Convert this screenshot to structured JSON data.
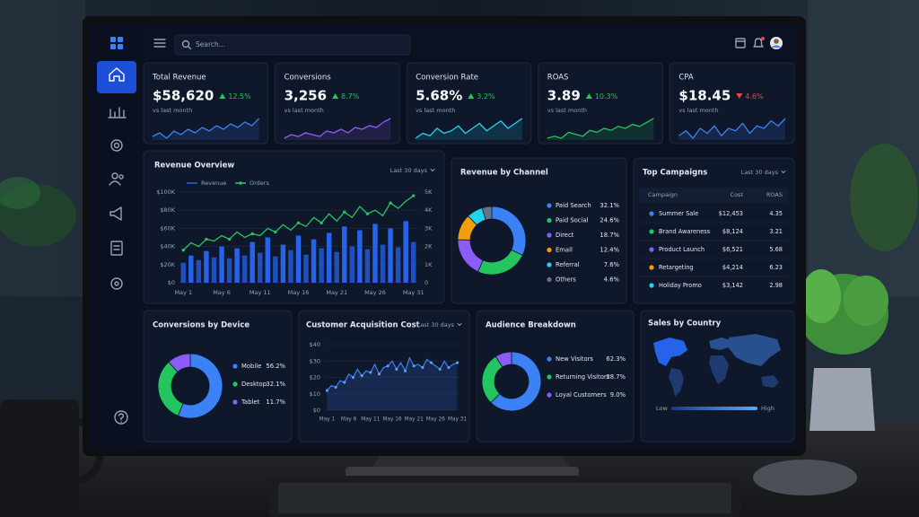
{
  "header": {
    "search_placeholder": "Search..."
  },
  "kpis": [
    {
      "title": "Total Revenue",
      "value": "$58,620",
      "change": "12.5%",
      "direction": "up",
      "note": "vs last month",
      "color": "#3b82f6",
      "spark": [
        14,
        16,
        13,
        17,
        15,
        18,
        16,
        19,
        17,
        20,
        18,
        21,
        19,
        22,
        20,
        24
      ]
    },
    {
      "title": "Conversions",
      "value": "3,256",
      "change": "8.7%",
      "direction": "up",
      "note": "vs last month",
      "color": "#8b5cf6",
      "spark": [
        12,
        14,
        13,
        15,
        14,
        13,
        16,
        15,
        17,
        15,
        18,
        17,
        19,
        18,
        21,
        23
      ]
    },
    {
      "title": "Conversion Rate",
      "value": "5.68%",
      "change": "3.2%",
      "direction": "up",
      "note": "vs last month",
      "color": "#22d3ee",
      "spark": [
        13,
        15,
        14,
        17,
        15,
        16,
        18,
        15,
        17,
        19,
        16,
        18,
        20,
        17,
        19,
        21
      ]
    },
    {
      "title": "ROAS",
      "value": "3.89",
      "change": "10.3%",
      "direction": "up",
      "note": "vs last month",
      "color": "#22c55e",
      "spark": [
        12,
        13,
        12,
        15,
        14,
        13,
        16,
        15,
        17,
        16,
        18,
        17,
        19,
        18,
        20,
        22
      ]
    },
    {
      "title": "CPA",
      "value": "$18.45",
      "change": "4.6%",
      "direction": "down",
      "note": "vs last month",
      "color": "#3b82f6",
      "spark": [
        15,
        17,
        14,
        18,
        16,
        19,
        15,
        18,
        17,
        20,
        16,
        19,
        18,
        21,
        19,
        22
      ]
    }
  ],
  "chart_data": [
    {
      "type": "bar_line",
      "title": "Revenue Overview",
      "range": "Last 30 days",
      "categories": [
        "May 1",
        null,
        null,
        null,
        null,
        "May 6",
        null,
        null,
        null,
        null,
        "May 11",
        null,
        null,
        null,
        null,
        "May 16",
        null,
        null,
        null,
        null,
        "May 21",
        null,
        null,
        null,
        null,
        "May 26",
        null,
        null,
        null,
        null,
        "May 31"
      ],
      "series": [
        {
          "name": "Revenue",
          "color": "#2563eb",
          "axis": "y",
          "values": [
            22000,
            30000,
            25000,
            35000,
            28000,
            40000,
            27000,
            38000,
            30000,
            45000,
            33000,
            50000,
            29000,
            42000,
            36000,
            52000,
            31000,
            48000,
            38000,
            55000,
            34000,
            62000,
            40000,
            58000,
            37000,
            65000,
            42000,
            60000,
            39000,
            68000,
            45000
          ]
        },
        {
          "name": "Orders",
          "color": "#22c55e",
          "axis": "y2",
          "values": [
            1800,
            2200,
            2000,
            2400,
            2300,
            2600,
            2400,
            2800,
            2500,
            2700,
            2600,
            3000,
            2800,
            3200,
            2900,
            3300,
            3100,
            3600,
            3300,
            3800,
            3400,
            3900,
            3600,
            4200,
            3800,
            4000,
            3700,
            4400,
            4100,
            4500,
            4800
          ]
        }
      ],
      "ylim": [
        0,
        100000
      ],
      "yticks": [
        {
          "value": 0,
          "label": "$0"
        },
        {
          "value": 20000,
          "label": "$20K"
        },
        {
          "value": 40000,
          "label": "$40K"
        },
        {
          "value": 60000,
          "label": "$60K"
        },
        {
          "value": 80000,
          "label": "$80K"
        },
        {
          "value": 100000,
          "label": "$100K"
        }
      ],
      "y2lim": [
        0,
        5000
      ],
      "y2ticks": [
        0,
        {
          "value": 1000,
          "label": "1K"
        },
        {
          "value": 2000,
          "label": "2K"
        },
        {
          "value": 3000,
          "label": "3K"
        },
        {
          "value": 4000,
          "label": "4K"
        },
        {
          "value": 5000,
          "label": "5K"
        }
      ],
      "grid": true
    },
    {
      "type": "donut",
      "title": "Revenue by Channel",
      "categories": [
        "Paid Search",
        "Paid Social",
        "Direct",
        "Email",
        "Referral",
        "Others"
      ],
      "values": [
        32.1,
        24.6,
        18.7,
        12.4,
        7.6,
        4.6
      ],
      "value_labels": [
        "32.1%",
        "24.6%",
        "18.7%",
        "12.4%",
        "7.6%",
        "4.6%"
      ],
      "colors": [
        "#3b82f6",
        "#22c55e",
        "#8b5cf6",
        "#f59e0b",
        "#22d3ee",
        "#64748b"
      ]
    },
    {
      "type": "donut",
      "title": "Conversions by Device",
      "categories": [
        "Mobile",
        "Desktop",
        "Tablet"
      ],
      "values": [
        56.2,
        32.1,
        11.7
      ],
      "value_labels": [
        "56.2%",
        "32.1%",
        "11.7%"
      ],
      "colors": [
        "#3b82f6",
        "#22c55e",
        "#8b5cf6"
      ]
    },
    {
      "type": "line",
      "title": "Customer Acquisition Cost",
      "range": "Last 30 days",
      "area": true,
      "color": "#3b82f6",
      "categories": [
        "May 1",
        null,
        null,
        null,
        null,
        "May 6",
        null,
        null,
        null,
        null,
        "May 11",
        null,
        null,
        null,
        null,
        "May 16",
        null,
        null,
        null,
        null,
        "May 21",
        null,
        null,
        null,
        null,
        "May 26",
        null,
        null,
        null,
        null,
        "May 31"
      ],
      "values": [
        12,
        15,
        14,
        18,
        17,
        22,
        20,
        25,
        21,
        24,
        23,
        28,
        22,
        26,
        27,
        30,
        25,
        29,
        24,
        32,
        27,
        28,
        26,
        31,
        29,
        27,
        25,
        30,
        26,
        28,
        29
      ],
      "ylim": [
        0,
        40
      ],
      "yticks": [
        {
          "value": 0,
          "label": "$0"
        },
        {
          "value": 10,
          "label": "$10"
        },
        {
          "value": 20,
          "label": "$20"
        },
        {
          "value": 30,
          "label": "$30"
        },
        {
          "value": 40,
          "label": "$40"
        }
      ],
      "grid": true
    },
    {
      "type": "donut",
      "title": "Audience Breakdown",
      "categories": [
        "New Visitors",
        "Returning Visitors",
        "Loyal Customers"
      ],
      "values": [
        62.3,
        28.7,
        9
      ],
      "value_labels": [
        "62.3%",
        "28.7%",
        "9.0%"
      ],
      "colors": [
        "#3b82f6",
        "#22c55e",
        "#8b5cf6"
      ]
    }
  ],
  "campaigns": {
    "title": "Top Campaigns",
    "range": "Last 30 days",
    "columns": [
      "Campaign",
      "Cost",
      "ROAS"
    ],
    "rows": [
      {
        "name": "Summer Sale",
        "cost": "$12,453",
        "roas": "4.35",
        "color": "#3b82f6"
      },
      {
        "name": "Brand Awareness",
        "cost": "$8,124",
        "roas": "3.21",
        "color": "#22c55e"
      },
      {
        "name": "Product Launch",
        "cost": "$6,521",
        "roas": "5.68",
        "color": "#8b5cf6"
      },
      {
        "name": "Retargeting",
        "cost": "$4,214",
        "roas": "6.23",
        "color": "#f59e0b"
      },
      {
        "name": "Holiday Promo",
        "cost": "$3,142",
        "roas": "2.98",
        "color": "#22d3ee"
      }
    ]
  },
  "sales_by_country": {
    "title": "Sales by Country",
    "legend_low": "Low",
    "legend_high": "High"
  }
}
